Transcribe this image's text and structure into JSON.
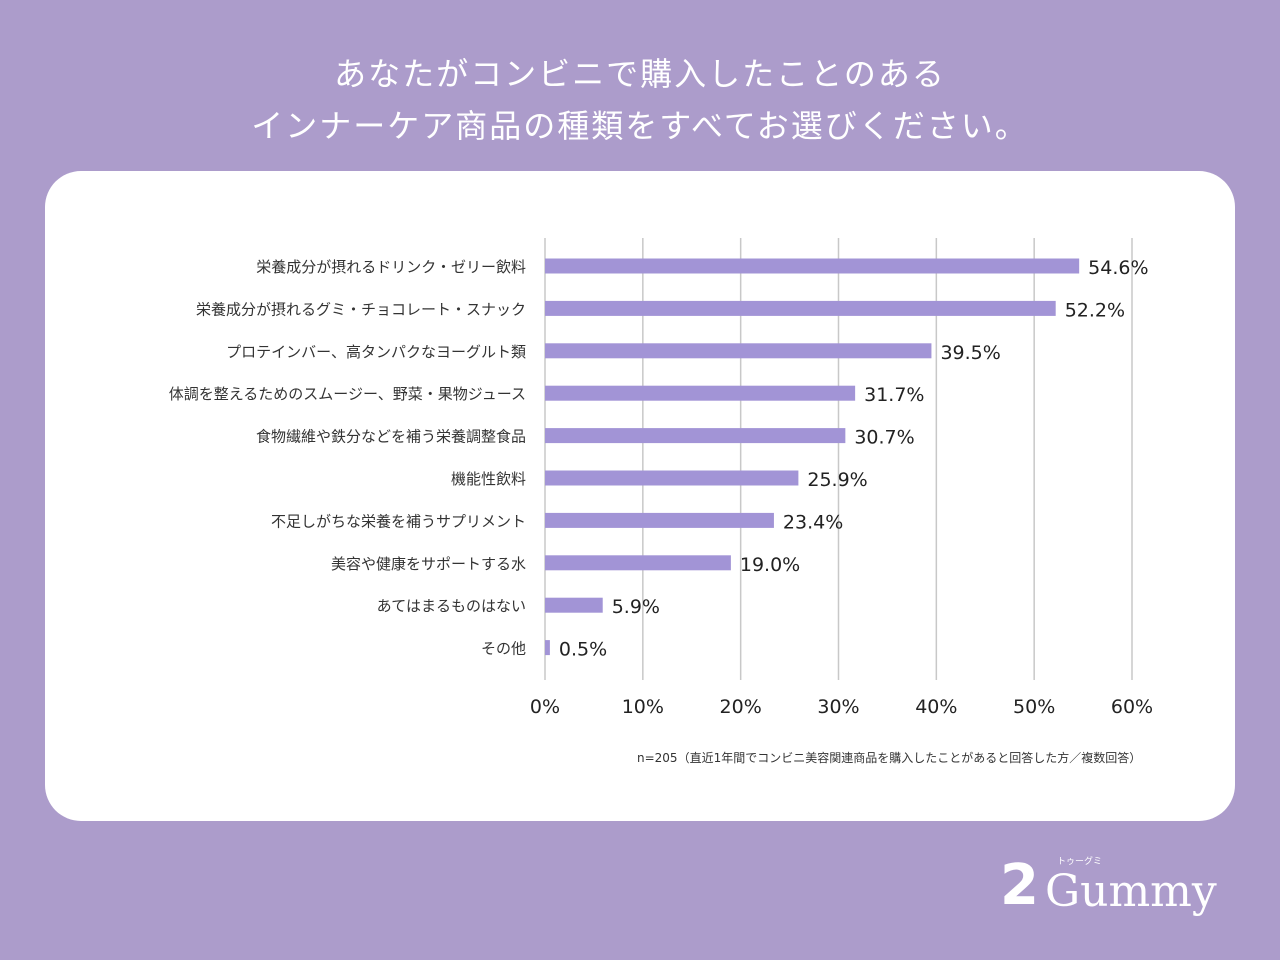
{
  "title_lines": [
    "あなたがコンビニで購入したことのある",
    "インナーケア商品の種類をすべてお選びください。"
  ],
  "chart_data": {
    "type": "bar",
    "orientation": "horizontal",
    "categories": [
      "栄養成分が摂れるドリンク・ゼリー飲料",
      "栄養成分が摂れるグミ・チョコレート・スナック",
      "プロテインバー、高タンパクなヨーグルト類",
      "体調を整えるためのスムージー、野菜・果物ジュース",
      "食物繊維や鉄分などを補う栄養調整食品",
      "機能性飲料",
      "不足しがちな栄養を補うサプリメント",
      "美容や健康をサポートする水",
      "あてはまるものはない",
      "その他"
    ],
    "values": [
      54.6,
      52.2,
      39.5,
      31.7,
      30.7,
      25.9,
      23.4,
      19.0,
      5.9,
      0.5
    ],
    "value_labels": [
      "54.6%",
      "52.2%",
      "39.5%",
      "31.7%",
      "30.7%",
      "25.9%",
      "23.4%",
      "19.0%",
      "5.9%",
      "0.5%"
    ],
    "xlim": [
      0,
      60
    ],
    "xticks": [
      "0%",
      "10%",
      "20%",
      "30%",
      "40%",
      "50%",
      "60%"
    ],
    "grid": true,
    "bar_color": "#a294d6"
  },
  "note": "n=205（直近1年間でコンビニ美容関連商品を購入したことがあると回答した方／複数回答）",
  "logo": {
    "number": "2",
    "word": "Gummy",
    "kana": "トゥーグミ"
  }
}
